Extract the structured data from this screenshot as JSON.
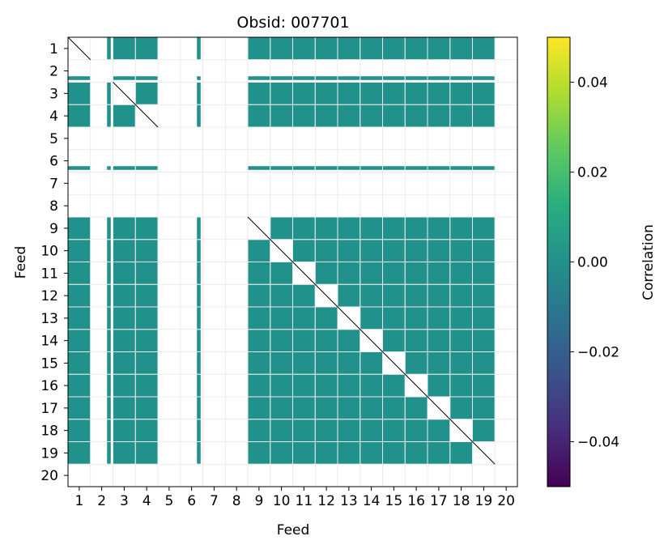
{
  "chart_data": {
    "type": "heatmap",
    "title": "Obsid: 007701",
    "xlabel": "Feed",
    "ylabel": "Feed",
    "x_ticks": [
      "1",
      "2",
      "3",
      "4",
      "5",
      "6",
      "7",
      "8",
      "9",
      "10",
      "11",
      "12",
      "13",
      "14",
      "15",
      "16",
      "17",
      "18",
      "19",
      "20"
    ],
    "y_ticks": [
      "1",
      "2",
      "3",
      "4",
      "5",
      "6",
      "7",
      "8",
      "9",
      "10",
      "11",
      "12",
      "13",
      "14",
      "15",
      "16",
      "17",
      "18",
      "19",
      "20"
    ],
    "active_feeds": [
      1,
      3,
      4,
      9,
      10,
      11,
      12,
      13,
      14,
      15,
      16,
      17,
      18,
      19
    ],
    "partial_feeds": [
      2,
      6
    ],
    "empty_feeds": [
      5,
      7,
      8,
      20
    ],
    "value_range": [
      -0.05,
      0.05
    ],
    "typical_value": 0.0,
    "grid": true,
    "colorbar": {
      "label": "Correlation",
      "colormap": "viridis",
      "vmin": -0.05,
      "vmax": 0.05,
      "tick_labels": [
        "0.04",
        "0.02",
        "0.00",
        "−0.02",
        "−0.04"
      ],
      "tick_values": [
        0.04,
        0.02,
        0.0,
        -0.02,
        -0.04
      ]
    },
    "colors": {
      "zero": "#21918c",
      "grid": "#e6e6e6"
    }
  }
}
